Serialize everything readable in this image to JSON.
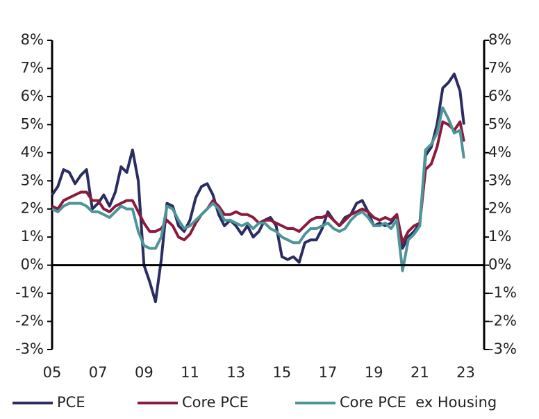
{
  "chart_data": {
    "type": "line",
    "x": [
      2005,
      2005.25,
      2005.5,
      2005.75,
      2006,
      2006.25,
      2006.5,
      2006.75,
      2007,
      2007.25,
      2007.5,
      2007.75,
      2008,
      2008.25,
      2008.5,
      2008.75,
      2009,
      2009.25,
      2009.5,
      2009.75,
      2010,
      2010.25,
      2010.5,
      2010.75,
      2011,
      2011.25,
      2011.5,
      2011.75,
      2012,
      2012.25,
      2012.5,
      2012.75,
      2013,
      2013.25,
      2013.5,
      2013.75,
      2014,
      2014.25,
      2014.5,
      2014.75,
      2015,
      2015.25,
      2015.5,
      2015.75,
      2016,
      2016.25,
      2016.5,
      2016.75,
      2017,
      2017.25,
      2017.5,
      2017.75,
      2018,
      2018.25,
      2018.5,
      2018.75,
      2019,
      2019.25,
      2019.5,
      2019.75,
      2020,
      2020.25,
      2020.5,
      2020.75,
      2021,
      2021.25,
      2021.5,
      2021.75,
      2022,
      2022.25,
      2022.5,
      2022.75,
      2022.92
    ],
    "series": [
      {
        "name": "PCE",
        "color": "#2b2d62",
        "values": [
          2.5,
          2.8,
          3.4,
          3.3,
          2.9,
          3.2,
          3.4,
          2.0,
          2.2,
          2.5,
          2.1,
          2.6,
          3.5,
          3.3,
          4.1,
          3.0,
          0.0,
          -0.6,
          -1.3,
          0.2,
          2.2,
          2.1,
          1.4,
          1.2,
          1.6,
          2.4,
          2.8,
          2.9,
          2.5,
          1.8,
          1.4,
          1.6,
          1.4,
          1.1,
          1.4,
          1.0,
          1.2,
          1.6,
          1.7,
          1.4,
          0.3,
          0.2,
          0.3,
          0.1,
          0.8,
          0.9,
          0.9,
          1.3,
          1.9,
          1.6,
          1.4,
          1.7,
          1.8,
          2.2,
          2.3,
          1.9,
          1.4,
          1.5,
          1.4,
          1.5,
          1.8,
          0.6,
          1.0,
          1.2,
          1.5,
          3.9,
          4.2,
          5.0,
          6.3,
          6.5,
          6.8,
          6.2,
          5.0
        ]
      },
      {
        "name": "Core PCE",
        "color": "#8b1a3c",
        "values": [
          2.1,
          2.0,
          2.3,
          2.4,
          2.5,
          2.6,
          2.6,
          2.3,
          2.3,
          2.0,
          1.9,
          2.1,
          2.2,
          2.3,
          2.3,
          1.9,
          1.5,
          1.2,
          1.2,
          1.3,
          1.6,
          1.4,
          1.0,
          0.9,
          1.1,
          1.5,
          1.8,
          2.0,
          2.3,
          2.1,
          1.8,
          1.8,
          1.9,
          1.8,
          1.8,
          1.7,
          1.5,
          1.6,
          1.6,
          1.5,
          1.4,
          1.3,
          1.3,
          1.2,
          1.4,
          1.6,
          1.7,
          1.7,
          1.8,
          1.6,
          1.4,
          1.6,
          1.8,
          1.9,
          2.0,
          1.9,
          1.7,
          1.6,
          1.7,
          1.6,
          1.8,
          0.8,
          1.2,
          1.4,
          1.5,
          3.4,
          3.6,
          4.2,
          5.1,
          5.0,
          4.8,
          5.1,
          4.4
        ]
      },
      {
        "name": "Core PCE  ex Housing",
        "color": "#4e9598",
        "values": [
          2.0,
          1.9,
          2.1,
          2.2,
          2.2,
          2.2,
          2.1,
          1.9,
          1.9,
          1.8,
          1.7,
          1.9,
          2.1,
          2.0,
          2.0,
          1.2,
          0.7,
          0.6,
          0.6,
          1.0,
          2.1,
          2.0,
          1.6,
          1.3,
          1.4,
          1.6,
          1.8,
          2.0,
          2.2,
          2.0,
          1.6,
          1.6,
          1.5,
          1.4,
          1.5,
          1.3,
          1.5,
          1.5,
          1.3,
          1.2,
          1.0,
          0.9,
          0.8,
          0.8,
          1.1,
          1.3,
          1.3,
          1.4,
          1.5,
          1.3,
          1.2,
          1.3,
          1.6,
          1.8,
          1.9,
          1.7,
          1.4,
          1.4,
          1.5,
          1.3,
          1.6,
          -0.2,
          0.9,
          1.1,
          1.4,
          4.1,
          4.3,
          4.7,
          5.6,
          5.2,
          4.7,
          4.8,
          3.8
        ]
      }
    ],
    "xlim": [
      2005,
      2023.8
    ],
    "xticks": [
      {
        "value": 2005,
        "label": "05"
      },
      {
        "value": 2007,
        "label": "07"
      },
      {
        "value": 2009,
        "label": "09"
      },
      {
        "value": 2011,
        "label": "11"
      },
      {
        "value": 2013,
        "label": "13"
      },
      {
        "value": 2015,
        "label": "15"
      },
      {
        "value": 2017,
        "label": "17"
      },
      {
        "value": 2019,
        "label": "19"
      },
      {
        "value": 2021,
        "label": "21"
      },
      {
        "value": 2023,
        "label": "23"
      }
    ],
    "ylim": [
      -3,
      8
    ],
    "yticks": [
      {
        "value": -3,
        "label": "-3%"
      },
      {
        "value": -2,
        "label": "-2%"
      },
      {
        "value": -1,
        "label": "-1%"
      },
      {
        "value": 0,
        "label": "0%"
      },
      {
        "value": 1,
        "label": "1%"
      },
      {
        "value": 2,
        "label": "2%"
      },
      {
        "value": 3,
        "label": "3%"
      },
      {
        "value": 4,
        "label": "4%"
      },
      {
        "value": 5,
        "label": "5%"
      },
      {
        "value": 6,
        "label": "6%"
      },
      {
        "value": 7,
        "label": "7%"
      },
      {
        "value": 8,
        "label": "8%"
      }
    ]
  }
}
